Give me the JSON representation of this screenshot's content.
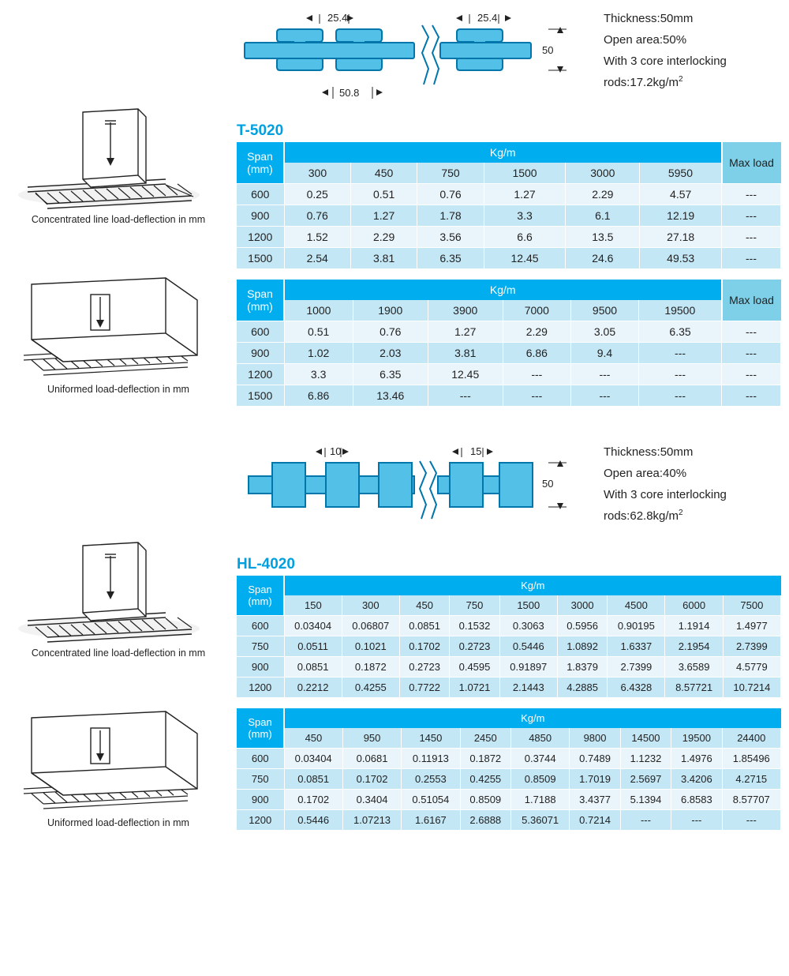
{
  "diagrams": {
    "concentrated_caption": "Concentrated line load-deflection in mm",
    "uniform_caption": "Uniformed load-deflection in mm"
  },
  "colors": {
    "header_bg": "#00aeef",
    "subheader_bg": "#c4e7f6",
    "max_bg": "#7dd0e8",
    "row_odd": "#eaf5fb",
    "row_even": "#c4e7f6",
    "text": "#222222",
    "profile_fill": "#53c0e8",
    "profile_stroke": "#0076aa"
  },
  "t5020": {
    "model": "T-5020",
    "profile": {
      "dim_top_left": "25.4",
      "dim_top_right": "25.4",
      "dim_bottom": "50.8",
      "height_label": "50"
    },
    "specs": {
      "line1": "Thickness:50mm",
      "line2": "Open area:50%",
      "line3": "With 3 core interlocking",
      "line4_pre": "rods:17.2kg/m",
      "line4_sup": "2"
    },
    "table1": {
      "span_label": "Span",
      "span_unit": "(mm)",
      "kgm_label": "Kg/m",
      "max_label": "Max load",
      "cols": [
        "300",
        "450",
        "750",
        "1500",
        "3000",
        "5950"
      ],
      "rows": [
        {
          "span": "600",
          "v": [
            "0.25",
            "0.51",
            "0.76",
            "1.27",
            "2.29",
            "4.57"
          ],
          "max": "---"
        },
        {
          "span": "900",
          "v": [
            "0.76",
            "1.27",
            "1.78",
            "3.3",
            "6.1",
            "12.19"
          ],
          "max": "---"
        },
        {
          "span": "1200",
          "v": [
            "1.52",
            "2.29",
            "3.56",
            "6.6",
            "13.5",
            "27.18"
          ],
          "max": "---"
        },
        {
          "span": "1500",
          "v": [
            "2.54",
            "3.81",
            "6.35",
            "12.45",
            "24.6",
            "49.53"
          ],
          "max": "---"
        }
      ]
    },
    "table2": {
      "span_label": "Span",
      "span_unit": "(mm)",
      "kgm_label": "Kg/m",
      "max_label": "Max load",
      "cols": [
        "1000",
        "1900",
        "3900",
        "7000",
        "9500",
        "19500"
      ],
      "rows": [
        {
          "span": "600",
          "v": [
            "0.51",
            "0.76",
            "1.27",
            "2.29",
            "3.05",
            "6.35"
          ],
          "max": "---"
        },
        {
          "span": "900",
          "v": [
            "1.02",
            "2.03",
            "3.81",
            "6.86",
            "9.4",
            "---"
          ],
          "max": "---"
        },
        {
          "span": "1200",
          "v": [
            "3.3",
            "6.35",
            "12.45",
            "---",
            "---",
            "---"
          ],
          "max": "---"
        },
        {
          "span": "1500",
          "v": [
            "6.86",
            "13.46",
            "---",
            "---",
            "---",
            "---"
          ],
          "max": "---"
        }
      ]
    }
  },
  "hl4020": {
    "model": "HL-4020",
    "profile": {
      "dim_top_left": "10",
      "dim_top_right": "15",
      "height_label": "50"
    },
    "specs": {
      "line1": "Thickness:50mm",
      "line2": "Open area:40%",
      "line3": "With 3 core interlocking",
      "line4_pre": "rods:62.8kg/m",
      "line4_sup": "2"
    },
    "table1": {
      "span_label": "Span",
      "span_unit": "(mm)",
      "kgm_label": "Kg/m",
      "cols": [
        "150",
        "300",
        "450",
        "750",
        "1500",
        "3000",
        "4500",
        "6000",
        "7500"
      ],
      "rows": [
        {
          "span": "600",
          "v": [
            "0.03404",
            "0.06807",
            "0.0851",
            "0.1532",
            "0.3063",
            "0.5956",
            "0.90195",
            "1.1914",
            "1.4977"
          ]
        },
        {
          "span": "750",
          "v": [
            "0.0511",
            "0.1021",
            "0.1702",
            "0.2723",
            "0.5446",
            "1.0892",
            "1.6337",
            "2.1954",
            "2.7399"
          ]
        },
        {
          "span": "900",
          "v": [
            "0.0851",
            "0.1872",
            "0.2723",
            "0.4595",
            "0.91897",
            "1.8379",
            "2.7399",
            "3.6589",
            "4.5779"
          ]
        },
        {
          "span": "1200",
          "v": [
            "0.2212",
            "0.4255",
            "0.7722",
            "1.0721",
            "2.1443",
            "4.2885",
            "6.4328",
            "8.57721",
            "10.7214"
          ]
        }
      ]
    },
    "table2": {
      "span_label": "Span",
      "span_unit": "(mm)",
      "kgm_label": "Kg/m",
      "cols": [
        "450",
        "950",
        "1450",
        "2450",
        "4850",
        "9800",
        "14500",
        "19500",
        "24400"
      ],
      "rows": [
        {
          "span": "600",
          "v": [
            "0.03404",
            "0.0681",
            "0.11913",
            "0.1872",
            "0.3744",
            "0.7489",
            "1.1232",
            "1.4976",
            "1.85496"
          ]
        },
        {
          "span": "750",
          "v": [
            "0.0851",
            "0.1702",
            "0.2553",
            "0.4255",
            "0.8509",
            "1.7019",
            "2.5697",
            "3.4206",
            "4.2715"
          ]
        },
        {
          "span": "900",
          "v": [
            "0.1702",
            "0.3404",
            "0.51054",
            "0.8509",
            "1.7188",
            "3.4377",
            "5.1394",
            "6.8583",
            "8.57707"
          ]
        },
        {
          "span": "1200",
          "v": [
            "0.5446",
            "1.07213",
            "1.6167",
            "2.6888",
            "5.36071",
            "0.7214",
            "---",
            "---",
            "---"
          ]
        }
      ]
    }
  }
}
